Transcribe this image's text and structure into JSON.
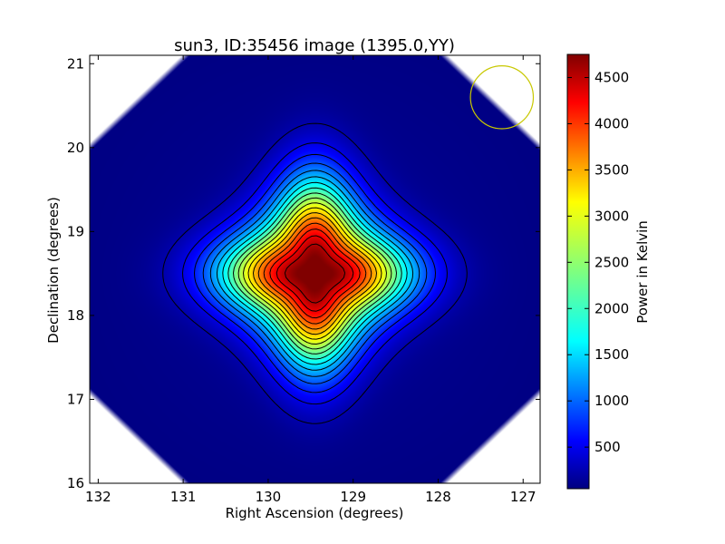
{
  "chart_data": {
    "type": "heatmap",
    "title": "sun3, ID:35456 image (1395.0,YY)",
    "xlabel": "Right Ascension (degrees)",
    "ylabel": "Declination (degrees)",
    "xlim": [
      132.1,
      126.8
    ],
    "ylim": [
      16.0,
      21.1
    ],
    "xticks": [
      132,
      131,
      130,
      129,
      128,
      127
    ],
    "yticks": [
      16,
      17,
      18,
      19,
      20,
      21
    ],
    "colorbar": {
      "label": "Power in Kelvin",
      "min": 50,
      "max": 4750,
      "ticks": [
        500,
        1000,
        1500,
        2000,
        2500,
        3000,
        3500,
        4000,
        4500
      ]
    },
    "peak": {
      "ra": 129.45,
      "dec": 18.5,
      "value": 4750
    },
    "contour_levels": [
      250,
      500,
      750,
      1000,
      1250,
      1500,
      1750,
      2000,
      2250,
      2500,
      2750,
      3000,
      3250,
      3500,
      3750,
      4000,
      4250,
      4500
    ],
    "beam": {
      "ra": 127.25,
      "dec": 20.6,
      "radius_deg": 0.37,
      "color": "#c8c800"
    },
    "colormap": "jet",
    "grid": false
  }
}
